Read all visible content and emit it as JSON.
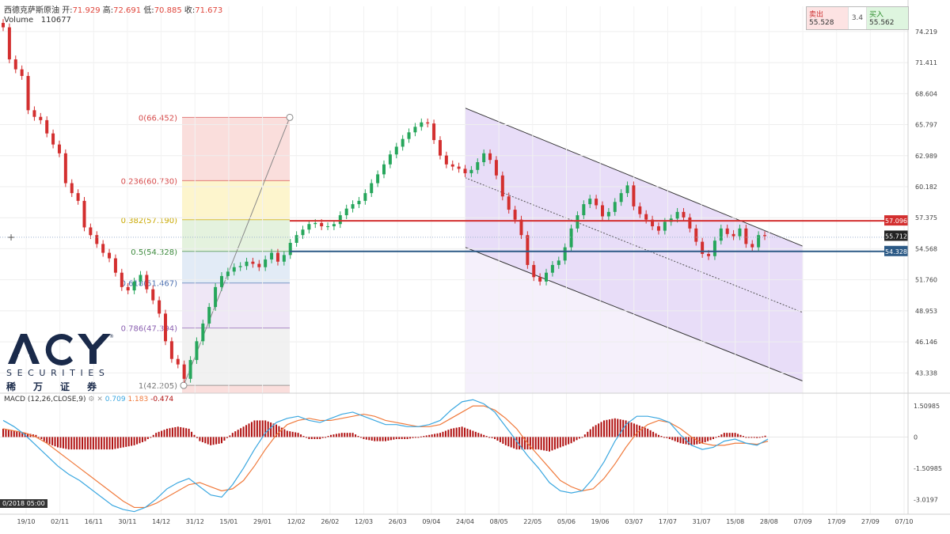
{
  "header": {
    "symbol": "西德克萨斯原油",
    "open_label": "开:",
    "open": "71.929",
    "high_label": "高:",
    "high": "72.691",
    "low_label": "低:",
    "low": "70.885",
    "close_label": "收:",
    "close": "71.673",
    "volume_label": "Volume",
    "volume": "110677"
  },
  "trade_widget": {
    "sell_label": "卖出",
    "sell_price": "55.528",
    "spread": "3.4",
    "buy_label": "买入",
    "buy_price": "55.562"
  },
  "logo": {
    "brand": "ACY",
    "line2": "SECURITIES",
    "line3": "稀万证券"
  },
  "macd": {
    "label": "MACD (12,26,CLOSE,9)",
    "macd_value": "0.709",
    "signal_value": "1.183",
    "hist_value": "-0.474",
    "colors": {
      "macd": "#3aa7e0",
      "signal": "#f07a3c",
      "hist": "#b01010"
    }
  },
  "cursor_date": "0/2018  05:00",
  "chart_data": [
    {
      "type": "line",
      "title": "",
      "y_ticks": [
        "74.219",
        "71.411",
        "68.604",
        "65.797",
        "62.989",
        "60.182",
        "57.375",
        "54.568",
        "51.760",
        "48.953",
        "46.146",
        "43.338"
      ],
      "y_tick_values": [
        74.219,
        71.411,
        68.604,
        65.797,
        62.989,
        60.182,
        57.375,
        54.568,
        51.76,
        48.953,
        46.146,
        43.338
      ],
      "ylim": [
        41.5,
        76.5
      ],
      "x_ticks": [
        "19/10",
        "02/11",
        "16/11",
        "30/11",
        "14/12",
        "31/12",
        "15/01",
        "29/01",
        "12/02",
        "26/02",
        "12/03",
        "26/03",
        "09/04",
        "24/04",
        "08/05",
        "22/05",
        "05/06",
        "19/06",
        "03/07",
        "17/07",
        "31/07",
        "15/08",
        "28/08",
        "07/09",
        "17/09",
        "27/09",
        "07/10"
      ],
      "price_series": [
        74.6,
        71.7,
        70.8,
        70.2,
        67.1,
        66.5,
        66.2,
        65.0,
        64.0,
        63.2,
        60.5,
        59.6,
        58.9,
        56.5,
        55.8,
        55.0,
        54.2,
        53.7,
        52.4,
        51.1,
        50.8,
        51.6,
        52.2,
        50.9,
        49.9,
        48.7,
        46.2,
        44.6,
        44.1,
        42.8,
        44.5,
        46.2,
        47.8,
        49.3,
        51.1,
        52.1,
        52.5,
        52.9,
        53.0,
        53.4,
        53.2,
        52.9,
        53.6,
        54.2,
        53.4,
        54.0,
        55.1,
        55.8,
        56.3,
        56.8,
        56.9,
        56.6,
        56.6,
        56.8,
        57.6,
        58.2,
        58.6,
        58.9,
        59.6,
        60.5,
        61.3,
        62.2,
        63.1,
        63.8,
        64.5,
        65.1,
        65.6,
        66.0,
        65.9,
        64.4,
        63.0,
        62.2,
        62.0,
        61.8,
        61.4,
        61.7,
        62.4,
        63.2,
        62.6,
        61.2,
        59.3,
        58.1,
        57.2,
        55.8,
        53.1,
        52.0,
        51.6,
        52.4,
        53.1,
        53.5,
        54.7,
        56.4,
        57.6,
        58.6,
        59.1,
        58.5,
        57.5,
        57.9,
        58.8,
        59.6,
        60.3,
        58.4,
        57.7,
        57.2,
        56.6,
        56.2,
        57.0,
        57.3,
        57.9,
        57.4,
        56.4,
        55.2,
        54.1,
        53.9,
        55.3,
        56.4,
        55.9,
        55.7,
        56.4,
        55.0,
        54.7,
        55.8,
        55.71
      ],
      "price_last": "55.712",
      "bid_line": 55.61,
      "levels": [
        {
          "name": "resistance",
          "value": 57.096,
          "label": "57.096",
          "color": "#d32f2f"
        },
        {
          "name": "support",
          "value": 54.328,
          "label": "54.328",
          "color": "#2c5a86"
        }
      ],
      "fibonacci": {
        "high": 66.452,
        "low": 42.205,
        "levels": [
          {
            "ratio": "0",
            "value": 66.452,
            "label": "0(66.452)",
            "color": "#d64b4b"
          },
          {
            "ratio": "0.236",
            "value": 60.73,
            "label": "0.236(60.730)",
            "color": "#d64b4b"
          },
          {
            "ratio": "0.382",
            "value": 57.19,
            "label": "0.382(57.190)",
            "color": "#c9a800"
          },
          {
            "ratio": "0.5",
            "value": 54.328,
            "label": "0.5(54.328)",
            "color": "#3d8a3d"
          },
          {
            "ratio": "0.618",
            "value": 51.467,
            "label": "0.618(51.467)",
            "color": "#4b6fb0"
          },
          {
            "ratio": "0.786",
            "value": 47.394,
            "label": "0.786(47.394)",
            "color": "#8a5fb0"
          },
          {
            "ratio": "1",
            "value": 42.205,
            "label": "1(42.205)",
            "color": "#777777"
          }
        ]
      },
      "channel": {
        "start_date": "24/04",
        "end_date": "07/09",
        "upper": [
          67.3,
          54.8
        ],
        "middle": [
          61.0,
          48.8
        ],
        "lower": [
          54.7,
          42.6
        ]
      }
    },
    {
      "type": "line",
      "title": "MACD (12,26,CLOSE,9)",
      "y_ticks": [
        "1.50985",
        "0",
        "-1.50985",
        "-3.0197"
      ],
      "y_tick_values": [
        1.50985,
        0,
        -1.50985,
        -3.0197
      ],
      "ylim": [
        -3.65,
        2.0
      ],
      "macd": [
        0.8,
        0.5,
        0.1,
        -0.4,
        -0.9,
        -1.4,
        -1.8,
        -2.1,
        -2.5,
        -2.9,
        -3.3,
        -3.5,
        -3.6,
        -3.4,
        -3.0,
        -2.5,
        -2.2,
        -2.0,
        -2.4,
        -2.8,
        -2.9,
        -2.3,
        -1.5,
        -0.6,
        0.2,
        0.7,
        0.9,
        1.0,
        0.8,
        0.7,
        0.9,
        1.1,
        1.2,
        1.0,
        0.8,
        0.6,
        0.6,
        0.5,
        0.5,
        0.6,
        0.8,
        1.3,
        1.7,
        1.8,
        1.6,
        1.2,
        0.5,
        -0.2,
        -0.9,
        -1.5,
        -2.2,
        -2.6,
        -2.7,
        -2.6,
        -2.0,
        -1.2,
        -0.2,
        0.6,
        1.0,
        1.0,
        0.9,
        0.7,
        0.1,
        -0.4,
        -0.6,
        -0.5,
        -0.2,
        -0.1,
        -0.3,
        -0.4,
        -0.1
      ],
      "signal": [
        0.4,
        0.3,
        0.2,
        0.0,
        -0.3,
        -0.7,
        -1.1,
        -1.5,
        -1.9,
        -2.3,
        -2.7,
        -3.1,
        -3.4,
        -3.4,
        -3.2,
        -2.9,
        -2.6,
        -2.3,
        -2.2,
        -2.4,
        -2.6,
        -2.5,
        -2.1,
        -1.4,
        -0.6,
        0.1,
        0.6,
        0.8,
        0.9,
        0.8,
        0.8,
        0.9,
        1.0,
        1.1,
        1.0,
        0.8,
        0.7,
        0.6,
        0.5,
        0.5,
        0.6,
        0.9,
        1.2,
        1.5,
        1.5,
        1.3,
        0.9,
        0.4,
        -0.3,
        -0.9,
        -1.5,
        -2.1,
        -2.4,
        -2.6,
        -2.5,
        -2.0,
        -1.3,
        -0.5,
        0.2,
        0.6,
        0.8,
        0.7,
        0.4,
        0.0,
        -0.3,
        -0.4,
        -0.4,
        -0.3,
        -0.3,
        -0.35,
        -0.2
      ],
      "histogram": [
        0.4,
        0.3,
        0.2,
        0.1,
        -0.3,
        -0.5,
        -0.6,
        -0.6,
        -0.6,
        -0.6,
        -0.6,
        -0.5,
        -0.4,
        -0.2,
        0.2,
        0.4,
        0.5,
        0.4,
        -0.2,
        -0.4,
        -0.3,
        0.2,
        0.5,
        0.8,
        0.8,
        0.6,
        0.3,
        0.2,
        -0.1,
        -0.1,
        0.1,
        0.2,
        0.2,
        -0.1,
        -0.2,
        -0.2,
        -0.1,
        -0.1,
        0.0,
        0.1,
        0.2,
        0.4,
        0.5,
        0.3,
        0.1,
        -0.1,
        -0.4,
        -0.6,
        -0.6,
        -0.6,
        -0.7,
        -0.5,
        -0.3,
        0.0,
        0.5,
        0.8,
        0.9,
        0.8,
        0.6,
        0.4,
        0.1,
        -0.1,
        -0.3,
        -0.4,
        -0.3,
        -0.1,
        0.2,
        0.2,
        0.0,
        -0.05,
        0.1
      ]
    }
  ]
}
